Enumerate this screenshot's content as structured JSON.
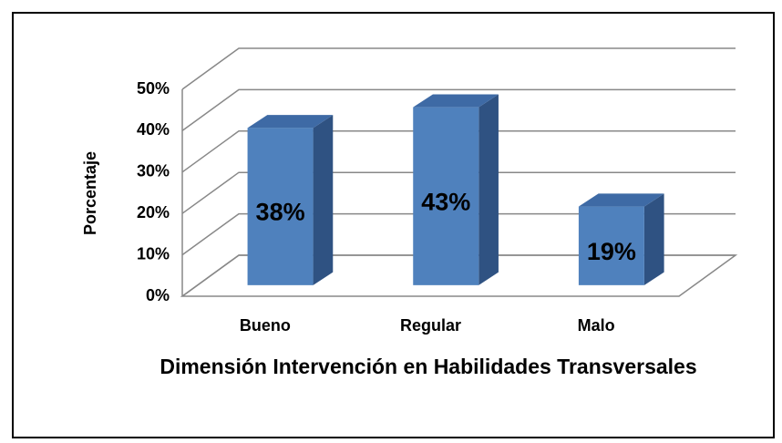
{
  "chart_data": {
    "type": "bar3d",
    "y_axis_label": "Porcentaje",
    "x_axis_label": "Dimensión Intervención en Habilidades Transversales",
    "categories": [
      "Bueno",
      "Regular",
      "Malo"
    ],
    "values": [
      38,
      43,
      19
    ],
    "value_labels": [
      "38%",
      "43%",
      "19%"
    ],
    "color": "#4f81bd",
    "ylim": [
      0,
      50
    ],
    "yticks": [
      {
        "value": 0,
        "label": "0%"
      },
      {
        "value": 10,
        "label": "10%"
      },
      {
        "value": 20,
        "label": "20%"
      },
      {
        "value": 30,
        "label": "30%"
      },
      {
        "value": 40,
        "label": "40%"
      },
      {
        "value": 50,
        "label": "50%"
      }
    ],
    "grid": true
  }
}
